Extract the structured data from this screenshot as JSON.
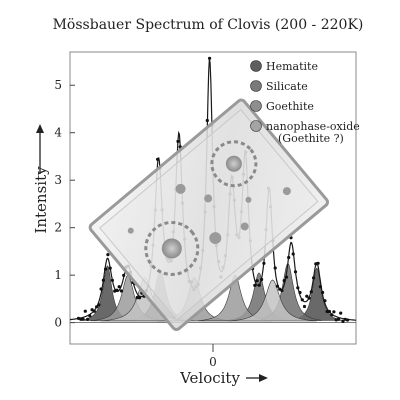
{
  "chart_data": {
    "type": "line",
    "title": "Mössbauer Spectrum of Clovis (200 - 220K)",
    "xlabel": "Velocity",
    "ylabel": "Intensity",
    "x_ticks": [
      {
        "value": 0,
        "label": "0"
      }
    ],
    "y_ticks": [
      0,
      1,
      2,
      3,
      4,
      5
    ],
    "xlim": [
      -4.2,
      4.2
    ],
    "ylim": [
      -0.45,
      5.7
    ],
    "grid": false,
    "legend_position": "top-right",
    "legend": [
      {
        "label": "Hematite",
        "color": "#5e5e5e"
      },
      {
        "label": "Silicate",
        "color": "#7a7a7a"
      },
      {
        "label": "Goethite",
        "color": "#8e8e8e"
      },
      {
        "label": "nanophase-oxide",
        "label2": "(Goethite ?)",
        "color": "#a4a4a4"
      }
    ],
    "components": [
      {
        "name": "Hematite",
        "color": "#4f4f4f",
        "peaks": [
          {
            "center": -3.1,
            "height": 1.2,
            "width": 0.16
          },
          {
            "center": 3.05,
            "height": 1.15,
            "width": 0.16
          }
        ]
      },
      {
        "name": "Silicate",
        "color": "#6e6e6e",
        "peaks": [
          {
            "center": -1.55,
            "height": 1.1,
            "width": 0.2
          },
          {
            "center": 1.35,
            "height": 1.05,
            "width": 0.2
          },
          {
            "center": 2.2,
            "height": 1.25,
            "width": 0.2
          }
        ]
      },
      {
        "name": "Goethite",
        "color": "#9b9b9b",
        "peaks": [
          {
            "center": -2.5,
            "height": 1.0,
            "width": 0.22
          },
          {
            "center": -0.55,
            "height": 0.95,
            "width": 0.22
          },
          {
            "center": 0.65,
            "height": 1.0,
            "width": 0.22
          }
        ]
      },
      {
        "name": "nanophase-oxide",
        "color": "#c3c3c3",
        "peaks": [
          {
            "center": -2.0,
            "height": 0.95,
            "width": 0.26
          },
          {
            "center": 1.75,
            "height": 0.9,
            "width": 0.26
          }
        ]
      }
    ],
    "sum_peaks": [
      {
        "center": -3.1,
        "height": 1.2,
        "width": 0.16
      },
      {
        "center": -2.5,
        "height": 1.0,
        "width": 0.2
      },
      {
        "center": -1.6,
        "height": 3.2,
        "width": 0.14
      },
      {
        "center": -1.0,
        "height": 3.7,
        "width": 0.13
      },
      {
        "center": -0.1,
        "height": 5.3,
        "width": 0.11
      },
      {
        "center": 0.55,
        "height": 2.6,
        "width": 0.13
      },
      {
        "center": 0.95,
        "height": 3.2,
        "width": 0.12
      },
      {
        "center": 1.65,
        "height": 2.6,
        "width": 0.12
      },
      {
        "center": 2.3,
        "height": 1.5,
        "width": 0.15
      },
      {
        "center": 3.05,
        "height": 1.15,
        "width": 0.15
      }
    ],
    "data_points": {
      "x_start": -3.95,
      "x_end": 3.95,
      "count": 120
    }
  }
}
